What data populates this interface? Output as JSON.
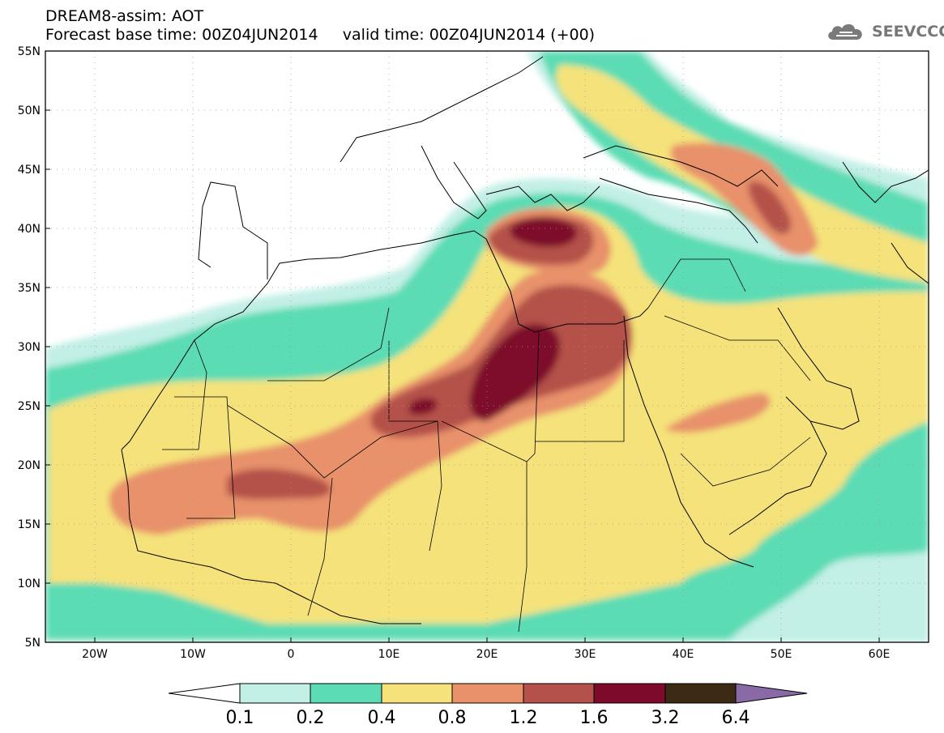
{
  "header": {
    "title_line_1": "DREAM8-assim: AOT",
    "title_line_2": "Forecast base time: 00Z04JUN2014     valid time: 00Z04JUN2014 (+00)"
  },
  "logo": {
    "icon": "cloud-icon",
    "text": "SEEVCCC"
  },
  "map": {
    "lon_range": [
      -25,
      65
    ],
    "lat_range": [
      5,
      55
    ],
    "lat_ticks": [
      "55N",
      "50N",
      "45N",
      "40N",
      "35N",
      "30N",
      "25N",
      "20N",
      "15N",
      "10N",
      "5N"
    ],
    "lon_ticks": [
      "20W",
      "10W",
      "0",
      "10E",
      "20E",
      "30E",
      "40E",
      "50E",
      "60E"
    ],
    "gridlines": "dotted"
  },
  "colorbar": {
    "labels": [
      "0.1",
      "0.2",
      "0.4",
      "0.8",
      "1.2",
      "1.6",
      "3.2",
      "6.4"
    ],
    "colors": [
      "#ffffff",
      "#c2efe6",
      "#5cdcb4",
      "#f5e27a",
      "#e8916a",
      "#b4514a",
      "#7d0a2a",
      "#3c2a14",
      "#8a6aa6"
    ]
  },
  "chart_data": {
    "type": "heatmap",
    "variable": "AOT",
    "levels": [
      0.1,
      0.2,
      0.4,
      0.8,
      1.2,
      1.6,
      3.2,
      6.4
    ],
    "xlim": [
      -25,
      65
    ],
    "ylim": [
      5,
      55
    ]
  }
}
